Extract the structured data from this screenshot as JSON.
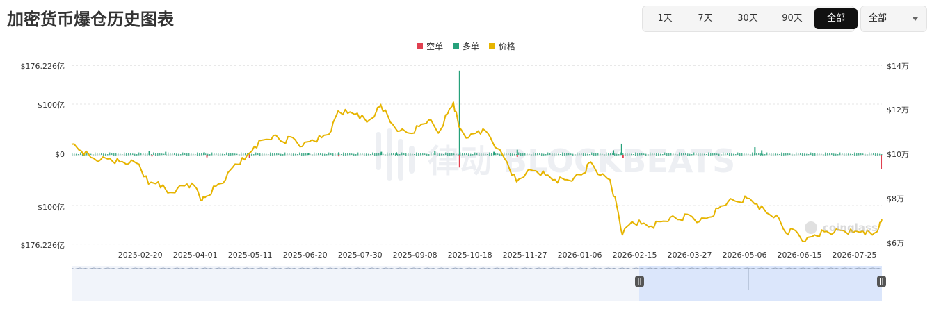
{
  "header": {
    "title": "加密货币爆仓历史图表"
  },
  "period_selector": {
    "buttons": [
      "1天",
      "7天",
      "30天",
      "90天",
      "全部"
    ],
    "active": "全部"
  },
  "coin_select": {
    "value": "全部"
  },
  "watermarks": {
    "center": "律动 BLOCKBEATS",
    "corner": "coinglass"
  },
  "colors": {
    "short": "#e04050",
    "long": "#26a17b",
    "price": "#e6b400",
    "grid": "#e5e5e5",
    "navigator": "#dbe6fb"
  },
  "chart_data": {
    "type": "bar",
    "legend": [
      "空单",
      "多单",
      "价格"
    ],
    "legend_position": "top-center",
    "left_axis_ticks": [
      "$176.226亿",
      "$100亿",
      "$0",
      "$100亿",
      "$176.226亿"
    ],
    "left_axis_values": [
      176.226,
      100,
      0,
      -100,
      -176.226
    ],
    "right_axis_ticks": [
      "$14万",
      "$12万",
      "$10万",
      "$8万",
      "$6万"
    ],
    "right_axis_values": [
      14,
      12,
      10,
      8,
      6
    ],
    "x_tick_labels": [
      "2025-02-20",
      "2025-04-01",
      "2025-05-11",
      "2025-06-20",
      "2025-07-30",
      "2025-09-08",
      "2025-10-18",
      "2025-11-27",
      "2026-01-06",
      "2026-02-15",
      "2026-03-27",
      "2026-05-06",
      "2026-06-15",
      "2026-07-25"
    ],
    "x_range": [
      "2025-01-01",
      "2026-08-14"
    ],
    "grid": true,
    "price_series": {
      "name": "价格",
      "unit": "万美元",
      "points": [
        [
          "2025-01-01",
          10.4
        ],
        [
          "2025-01-08",
          10.1
        ],
        [
          "2025-01-15",
          9.8
        ],
        [
          "2025-01-22",
          9.7
        ],
        [
          "2025-01-29",
          9.75
        ],
        [
          "2025-02-05",
          9.6
        ],
        [
          "2025-02-12",
          9.55
        ],
        [
          "2025-02-19",
          9.5
        ],
        [
          "2025-02-26",
          8.6
        ],
        [
          "2025-03-05",
          8.7
        ],
        [
          "2025-03-12",
          8.2
        ],
        [
          "2025-03-19",
          8.4
        ],
        [
          "2025-03-26",
          8.6
        ],
        [
          "2025-04-02",
          8.4
        ],
        [
          "2025-04-06",
          7.85
        ],
        [
          "2025-04-09",
          8.05
        ],
        [
          "2025-04-16",
          8.5
        ],
        [
          "2025-04-23",
          8.8
        ],
        [
          "2025-04-30",
          9.5
        ],
        [
          "2025-05-07",
          9.7
        ],
        [
          "2025-05-14",
          10.3
        ],
        [
          "2025-05-21",
          10.6
        ],
        [
          "2025-05-28",
          10.8
        ],
        [
          "2025-06-04",
          10.5
        ],
        [
          "2025-06-11",
          10.7
        ],
        [
          "2025-06-18",
          10.3
        ],
        [
          "2025-06-25",
          10.6
        ],
        [
          "2025-07-02",
          10.7
        ],
        [
          "2025-07-09",
          11.0
        ],
        [
          "2025-07-14",
          11.9
        ],
        [
          "2025-07-21",
          11.8
        ],
        [
          "2025-07-28",
          11.8
        ],
        [
          "2025-08-04",
          11.4
        ],
        [
          "2025-08-11",
          11.9
        ],
        [
          "2025-08-14",
          12.2
        ],
        [
          "2025-08-21",
          11.4
        ],
        [
          "2025-08-28",
          11.0
        ],
        [
          "2025-09-04",
          10.9
        ],
        [
          "2025-09-11",
          11.2
        ],
        [
          "2025-09-18",
          11.5
        ],
        [
          "2025-09-25",
          10.9
        ],
        [
          "2025-10-02",
          11.8
        ],
        [
          "2025-10-06",
          12.3
        ],
        [
          "2025-10-10",
          11.2
        ],
        [
          "2025-10-17",
          10.7
        ],
        [
          "2025-10-24",
          11.0
        ],
        [
          "2025-10-31",
          10.9
        ],
        [
          "2025-11-07",
          10.2
        ],
        [
          "2025-11-14",
          9.6
        ],
        [
          "2025-11-21",
          8.7
        ],
        [
          "2025-11-28",
          9.1
        ],
        [
          "2025-12-05",
          9.2
        ],
        [
          "2025-12-12",
          9.0
        ],
        [
          "2025-12-19",
          8.8
        ],
        [
          "2025-12-26",
          8.8
        ],
        [
          "2026-01-02",
          8.9
        ],
        [
          "2026-01-09",
          9.1
        ],
        [
          "2026-01-14",
          9.6
        ],
        [
          "2026-01-21",
          9.0
        ],
        [
          "2026-01-28",
          8.8
        ],
        [
          "2026-02-02",
          7.6
        ],
        [
          "2026-02-06",
          6.3
        ],
        [
          "2026-02-13",
          6.9
        ],
        [
          "2026-02-20",
          6.8
        ],
        [
          "2026-02-27",
          6.7
        ],
        [
          "2026-03-06",
          6.9
        ],
        [
          "2026-03-13",
          7.1
        ],
        [
          "2026-03-20",
          7.0
        ],
        [
          "2026-03-27",
          7.2
        ],
        [
          "2026-04-03",
          6.9
        ],
        [
          "2026-04-10",
          7.1
        ],
        [
          "2026-04-17",
          7.5
        ],
        [
          "2026-04-24",
          7.8
        ],
        [
          "2026-05-01",
          7.8
        ],
        [
          "2026-05-08",
          7.95
        ],
        [
          "2026-05-15",
          7.7
        ],
        [
          "2026-05-22",
          7.3
        ],
        [
          "2026-05-29",
          7.2
        ],
        [
          "2026-06-05",
          6.4
        ],
        [
          "2026-06-12",
          6.5
        ],
        [
          "2026-06-19",
          6.0
        ],
        [
          "2026-06-26",
          6.3
        ],
        [
          "2026-07-03",
          6.45
        ],
        [
          "2026-07-10",
          6.4
        ],
        [
          "2026-07-17",
          6.5
        ],
        [
          "2026-07-24",
          6.4
        ],
        [
          "2026-07-31",
          6.5
        ],
        [
          "2026-08-07",
          6.3
        ],
        [
          "2026-08-12",
          6.7
        ],
        [
          "2026-08-14",
          7.0
        ]
      ]
    },
    "liquidation_series": [
      {
        "name": "多单",
        "unit": "亿美元",
        "points": [
          [
            "2025-02-26",
            8
          ],
          [
            "2025-03-10",
            6
          ],
          [
            "2025-04-07",
            5
          ],
          [
            "2025-06-22",
            4
          ],
          [
            "2025-07-14",
            5
          ],
          [
            "2025-08-14",
            6
          ],
          [
            "2025-08-25",
            5
          ],
          [
            "2025-09-22",
            8
          ],
          [
            "2025-10-10",
            166
          ],
          [
            "2025-11-04",
            6
          ],
          [
            "2025-11-21",
            10
          ],
          [
            "2026-01-30",
            9
          ],
          [
            "2026-02-05",
            22
          ],
          [
            "2026-05-13",
            15
          ],
          [
            "2026-05-18",
            9
          ]
        ]
      },
      {
        "name": "空单",
        "unit": "亿美元",
        "points": [
          [
            "2025-02-28",
            -3
          ],
          [
            "2025-04-09",
            -5
          ],
          [
            "2025-05-10",
            -6
          ],
          [
            "2025-07-14",
            -3
          ],
          [
            "2025-10-10",
            -25
          ],
          [
            "2025-11-21",
            -4
          ],
          [
            "2026-02-06",
            -6
          ],
          [
            "2026-08-13",
            -28
          ]
        ]
      }
    ]
  }
}
